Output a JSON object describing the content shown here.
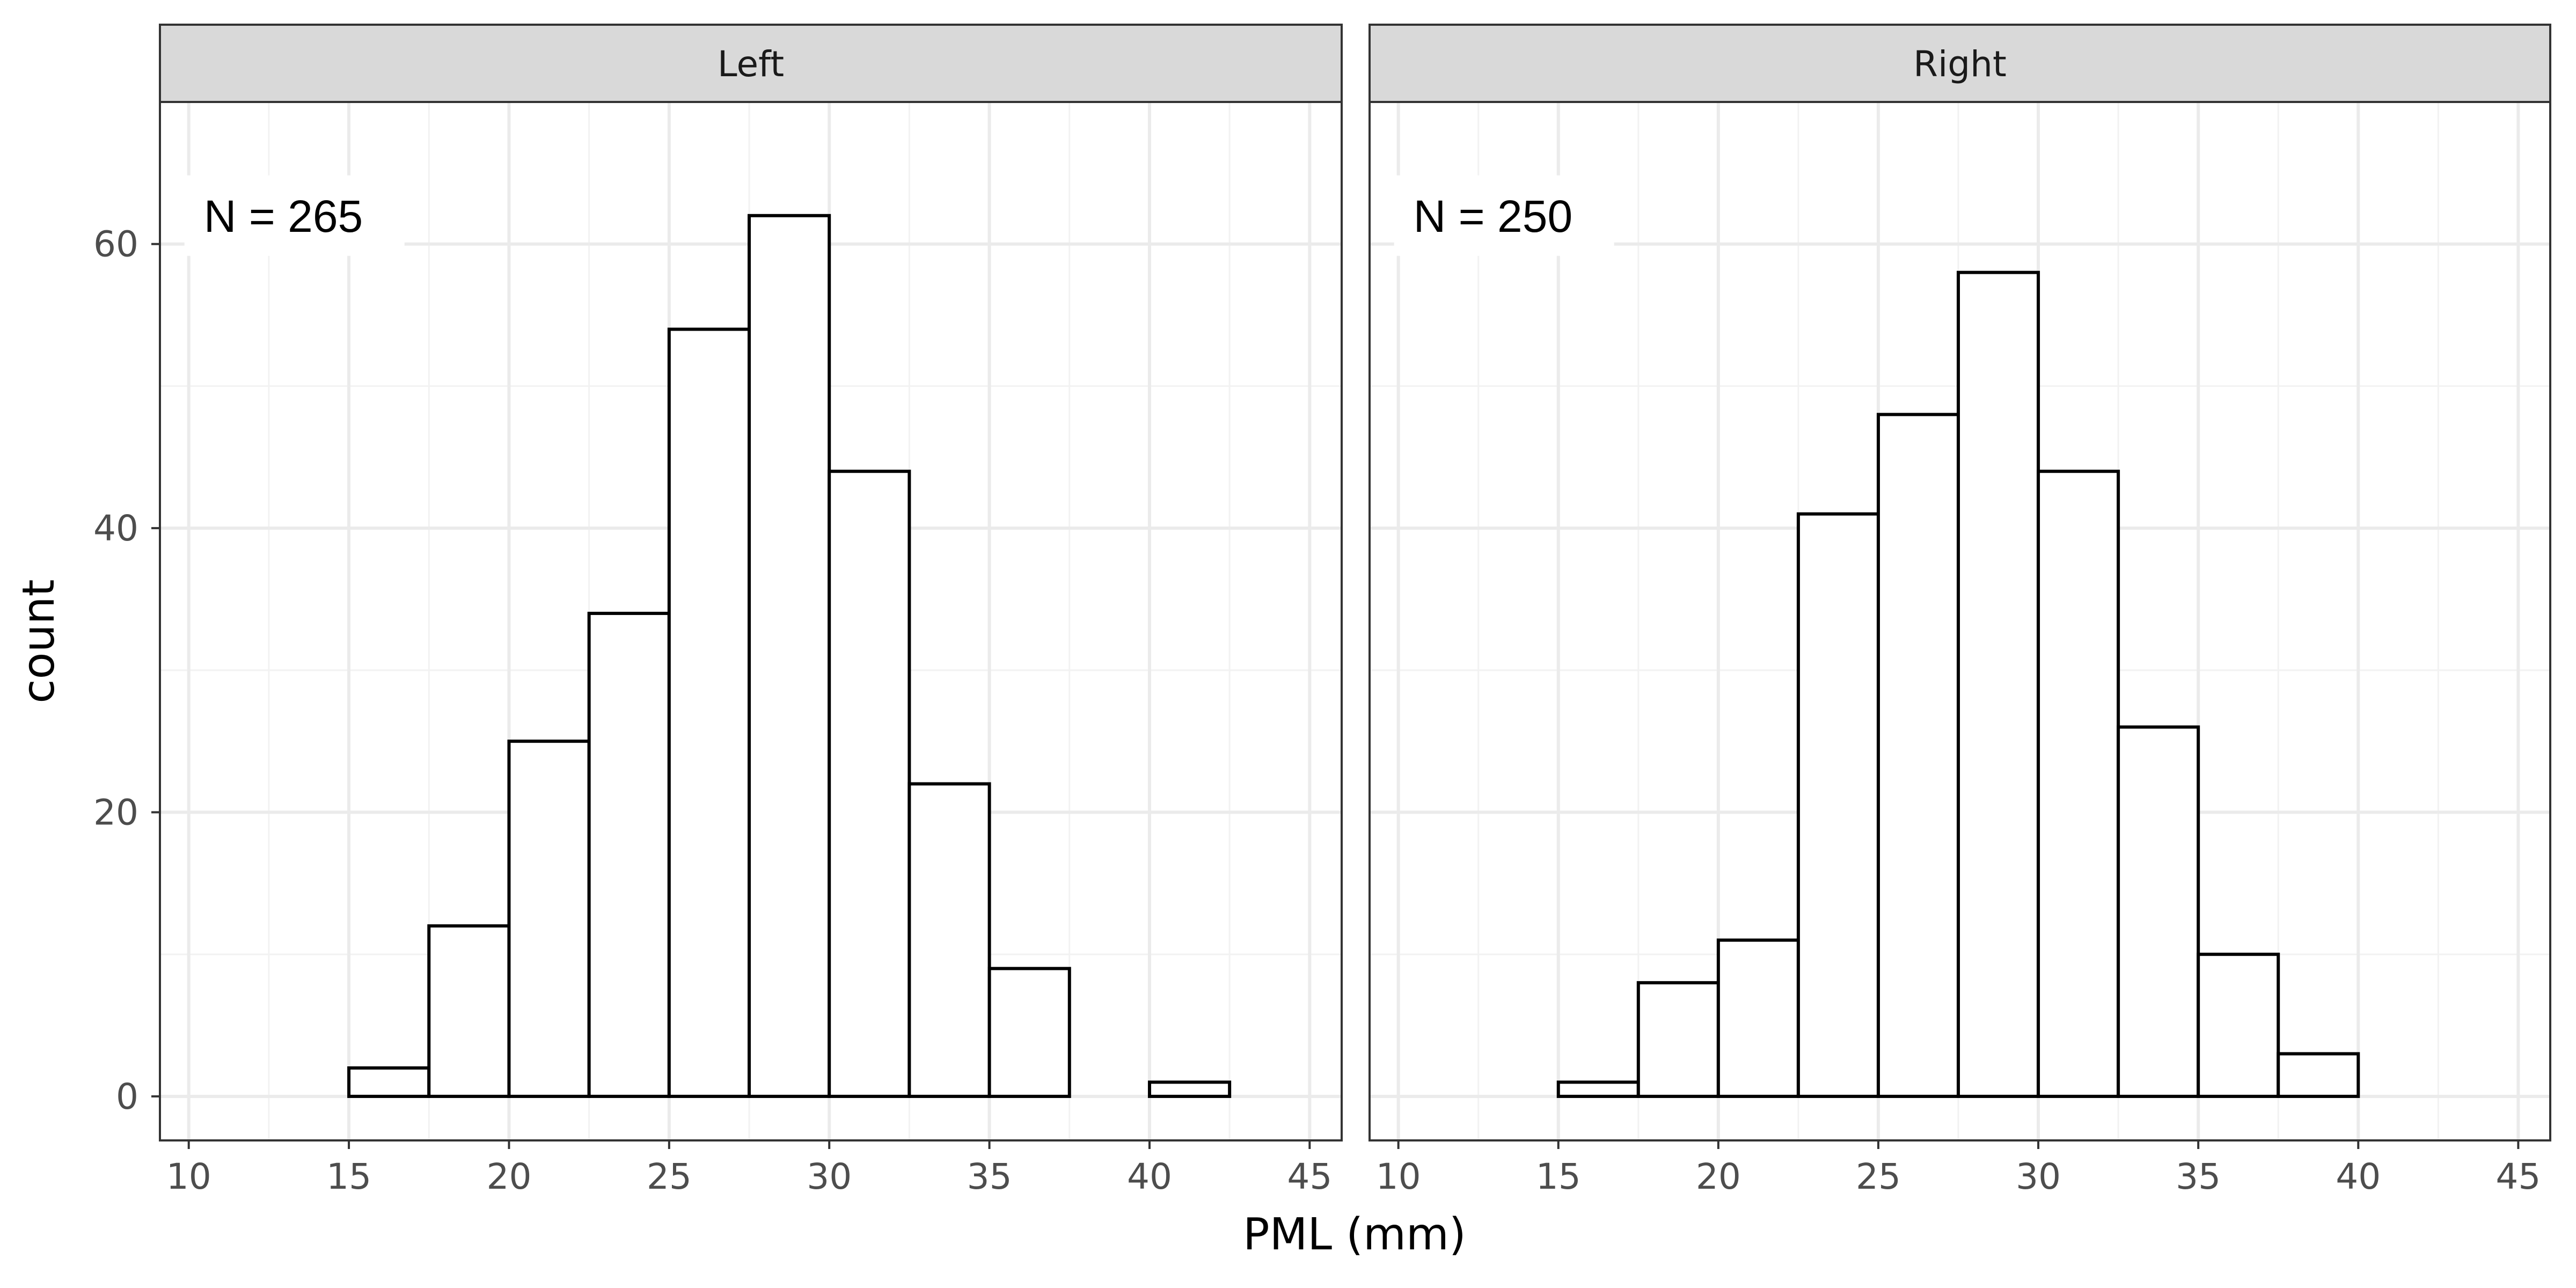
{
  "chart_data": {
    "type": "bar",
    "xlabel": "PML (mm)",
    "ylabel": "count",
    "x_ticks": [
      10,
      15,
      20,
      25,
      30,
      35,
      40,
      45
    ],
    "y_ticks": [
      0,
      20,
      40,
      60
    ],
    "xlim": [
      9.1,
      46.0
    ],
    "ylim": [
      -3.1,
      70.0
    ],
    "bin_width": 2.5,
    "bin_starts": [
      10,
      12.5,
      15,
      17.5,
      20,
      22.5,
      25,
      27.5,
      30,
      32.5,
      35,
      37.5,
      40,
      42.5
    ],
    "grid": true,
    "panels": [
      {
        "label": "Left",
        "annotation": "N = 265",
        "values": [
          0,
          0,
          2,
          12,
          25,
          34,
          54,
          62,
          44,
          22,
          9,
          0,
          1,
          0
        ]
      },
      {
        "label": "Right",
        "annotation": "N = 250",
        "values": [
          0,
          0,
          1,
          8,
          11,
          41,
          48,
          58,
          44,
          26,
          10,
          3,
          0,
          0
        ]
      }
    ]
  }
}
